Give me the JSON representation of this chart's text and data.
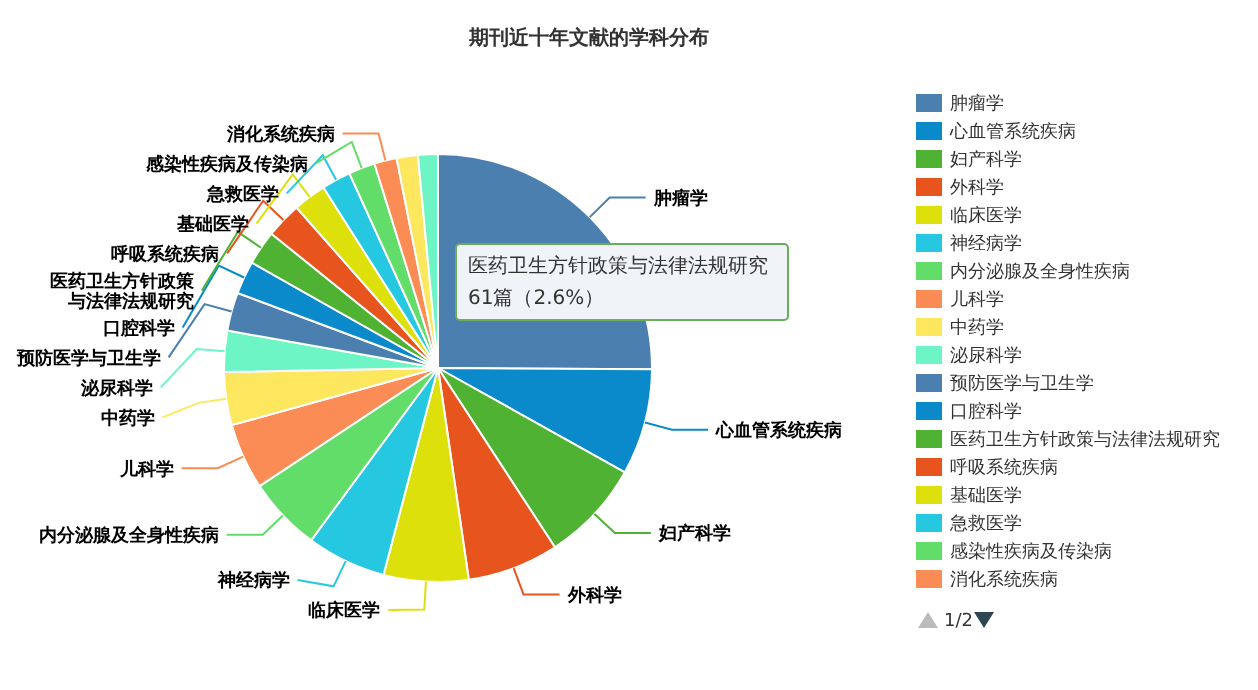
{
  "chart_data": {
    "type": "pie",
    "title": "期刊近十年文献的学科分布",
    "categories": [
      "肿瘤学",
      "心血管系统疾病",
      "妇产科学",
      "外科学",
      "临床医学",
      "神经病学",
      "内分泌腺及全身性疾病",
      "儿科学",
      "中药学",
      "泌尿科学",
      "预防医学与卫生学",
      "口腔科学",
      "医药卫生方针政策与法律法规研究",
      "呼吸系统疾病",
      "基础医学",
      "急救医学",
      "感染性疾病及传染病",
      "消化系统疾病",
      null,
      null
    ],
    "values": [
      25.1,
      8.0,
      7.7,
      6.9,
      6.4,
      6.0,
      5.6,
      5.0,
      4.0,
      3.1,
      2.9,
      2.5,
      2.6,
      2.7,
      2.5,
      2.2,
      2.0,
      1.7,
      1.6,
      1.5
    ],
    "colors": [
      "#4a7fb0",
      "#0a8acb",
      "#4fb233",
      "#e8541e",
      "#dde00a",
      "#25c8e0",
      "#62dd6a",
      "#fb8c55",
      "#fde75e",
      "#6ef5c5",
      "#4a7fb0",
      "#0a8acb",
      "#4fb233",
      "#e8541e",
      "#dde00a",
      "#25c8e0",
      "#62dd6a",
      "#fb8c55",
      "#fde75e",
      "#6ef5c5"
    ],
    "legend": "right",
    "annotations": [
      "医药卫生方针政策与法律法规研究",
      "61篇（2.6%）",
      "1/2"
    ]
  }
}
